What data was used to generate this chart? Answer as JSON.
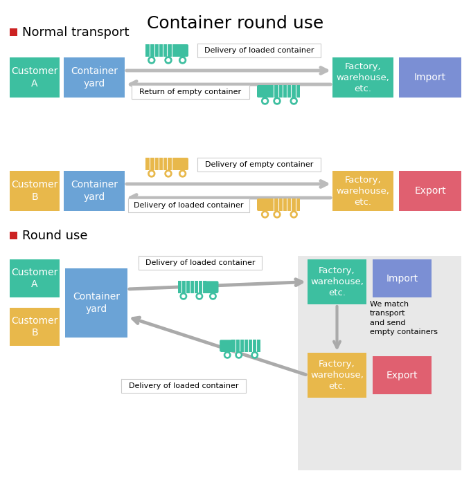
{
  "title": "Container round use",
  "title_fontsize": 18,
  "bg_color": "#ffffff",
  "colors": {
    "teal": "#3DBFA0",
    "blue": "#6BA3D6",
    "gold": "#E8B84B",
    "red_pink": "#E06070",
    "purple_blue": "#7B8FD4",
    "light_gray_bg": "#E8E8E8",
    "arrow_gray": "#AAAAAA",
    "white": "#FFFFFF",
    "red_square": "#CC2222",
    "label_border": "#CCCCCC"
  },
  "section1_label": "Normal transport",
  "section2_label": "Round use"
}
